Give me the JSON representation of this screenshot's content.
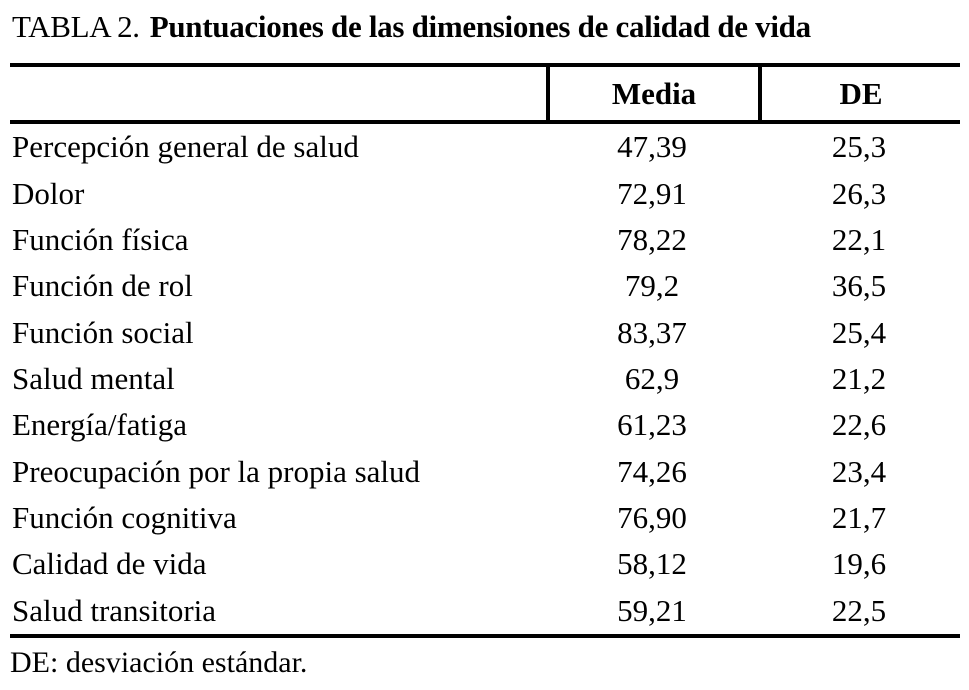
{
  "title": {
    "label": "TABLA 2.",
    "text": "Puntuaciones de las dimensiones de calidad de vida"
  },
  "table": {
    "headers": [
      "Media",
      "DE"
    ],
    "rows": [
      {
        "label": "Percepción general de salud",
        "media": "47,39",
        "de": "25,3"
      },
      {
        "label": "Dolor",
        "media": "72,91",
        "de": "26,3"
      },
      {
        "label": "Función física",
        "media": "78,22",
        "de": "22,1"
      },
      {
        "label": "Función de rol",
        "media": "79,2",
        "de": "36,5"
      },
      {
        "label": "Función social",
        "media": "83,37",
        "de": "25,4"
      },
      {
        "label": "Salud mental",
        "media": "62,9",
        "de": "21,2"
      },
      {
        "label": "Energía/fatiga",
        "media": "61,23",
        "de": "22,6"
      },
      {
        "label": "Preocupación por la propia salud",
        "media": "74,26",
        "de": "23,4"
      },
      {
        "label": "Función cognitiva",
        "media": "76,90",
        "de": "21,7"
      },
      {
        "label": "Calidad de vida",
        "media": "58,12",
        "de": "19,6"
      },
      {
        "label": "Salud transitoria",
        "media": "59,21",
        "de": "22,5"
      }
    ]
  },
  "footnote": "DE: desviación estándar.",
  "colors": {
    "text": "#000000",
    "background": "#ffffff",
    "rule": "#000000"
  }
}
